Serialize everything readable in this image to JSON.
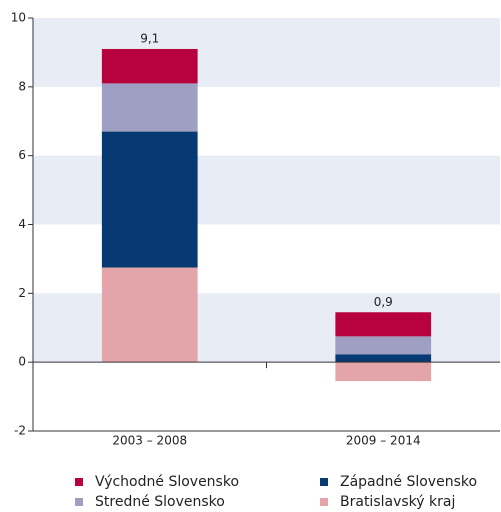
{
  "chart_data": {
    "type": "stacked_bar",
    "categories": [
      "2003 – 2008",
      "2009 – 2014"
    ],
    "series": [
      {
        "name": "Bratislavský kraj",
        "color": "#e3a5a9",
        "values": [
          2.75,
          -0.55
        ]
      },
      {
        "name": "Západné Slovensko",
        "color": "#073a73",
        "values": [
          3.95,
          0.23
        ]
      },
      {
        "name": "Stredné Slovensko",
        "color": "#9e9fc2",
        "values": [
          1.4,
          0.52
        ]
      },
      {
        "name": "Východné Slovensko",
        "color": "#b7023f",
        "values": [
          1.0,
          0.7
        ]
      }
    ],
    "totals": {
      "values": [
        9.1,
        0.9
      ],
      "value_labels": [
        "9,1",
        "0,9"
      ]
    },
    "ylim": [
      -2,
      10
    ],
    "yticks": [
      -2,
      0,
      2,
      4,
      6,
      8,
      10
    ],
    "band_color": "#e8ecf4"
  }
}
